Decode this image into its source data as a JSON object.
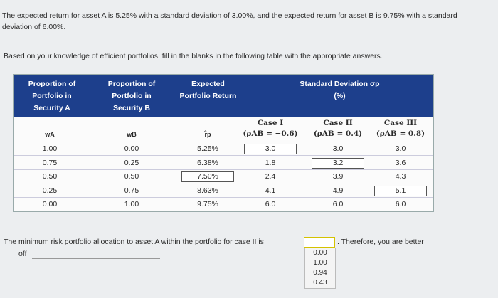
{
  "intro": [
    "The expected return for asset A is 5.25% with a standard deviation of 3.00%, and the expected return for asset B is 9.75% with a standard deviation of 6.00%.",
    "Based on your knowledge of efficient portfolios, fill in the blanks in the following table with the appropriate answers."
  ],
  "table": {
    "headers": [
      "Proportion of Portfolio in Security A",
      "Proportion of Portfolio in Security B",
      "Expected Portfolio Return",
      "Standard Deviation σp (%)"
    ],
    "cases": [
      [
        "Case I",
        "(ρAB = −0.6)"
      ],
      [
        "Case II",
        "(ρAB = 0.4)"
      ],
      [
        "Case III",
        "(ρAB = 0.8)"
      ]
    ],
    "symbols": [
      "wA",
      "wB",
      "r̂p"
    ],
    "rows": [
      [
        "1.00",
        "0.00",
        "5.25%",
        "3.0",
        "3.0",
        "3.0"
      ],
      [
        "0.75",
        "0.25",
        "6.38%",
        "1.8",
        "3.2",
        "3.6"
      ],
      [
        "0.50",
        "0.50",
        "7.50%",
        "2.4",
        "3.9",
        "4.3"
      ],
      [
        "0.25",
        "0.75",
        "8.63%",
        "4.1",
        "4.9",
        "5.1"
      ],
      [
        "0.00",
        "1.00",
        "9.75%",
        "6.0",
        "6.0",
        "6.0"
      ]
    ]
  },
  "question": {
    "before": "The minimum risk portfolio allocation to asset A within the portfolio for case II is",
    "after": ". Therefore, you are better",
    "end": "off",
    "options": [
      "0.00",
      "1.00",
      "0.94",
      "0.43"
    ]
  }
}
